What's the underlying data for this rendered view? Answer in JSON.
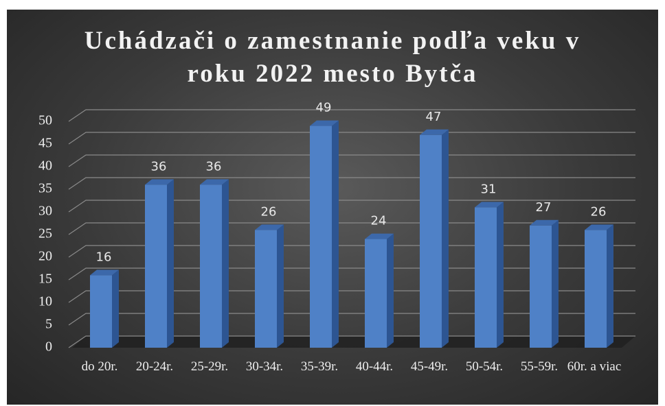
{
  "chart_data": {
    "type": "bar3d",
    "title": "Uchádzači o zamestnanie podľa veku v roku 2022 mesto Bytča",
    "categories": [
      "do 20r.",
      "20-24r.",
      "25-29r.",
      "30-34r.",
      "35-39r.",
      "40-44r.",
      "45-49r.",
      "50-54r.",
      "55-59r.",
      "60r. a viac"
    ],
    "values": [
      16,
      36,
      36,
      26,
      49,
      24,
      47,
      31,
      27,
      26
    ],
    "color": "#4f81c7",
    "ylim": [
      0,
      50
    ],
    "yticks": [
      0,
      5,
      10,
      15,
      20,
      25,
      30,
      35,
      40,
      45,
      50
    ],
    "grid": true
  }
}
